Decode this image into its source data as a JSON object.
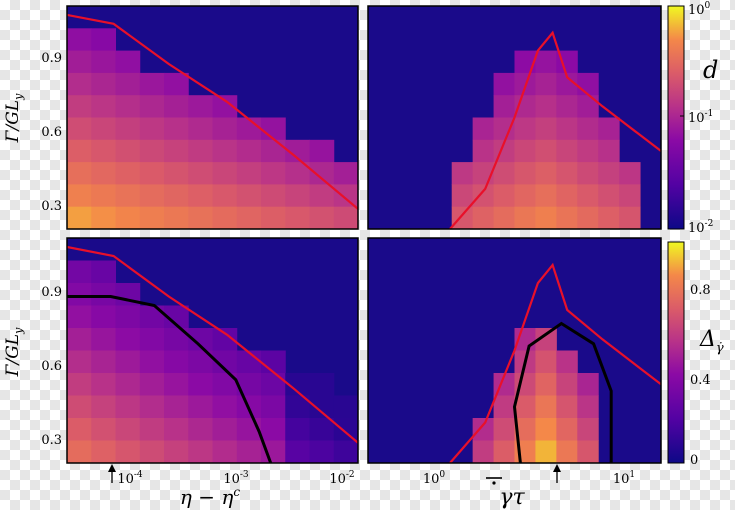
{
  "chart_data": [
    {
      "panel": "top-left",
      "type": "heatmap",
      "ylabel": "Γ/GL_y",
      "xscale": "log",
      "yticks": [
        "0.3",
        "0.6",
        "0.9"
      ],
      "ylim": [
        0.2,
        1.1
      ],
      "colormap": "plasma",
      "color_quantity": "d",
      "red_curve": {
        "x": [
          0,
          0.15,
          0.35,
          0.55,
          0.75,
          1.0
        ],
        "y": [
          1.05,
          1.0,
          0.87,
          0.72,
          0.56,
          0.29
        ]
      }
    },
    {
      "panel": "top-right",
      "type": "heatmap",
      "xscale": "log",
      "colormap": "plasma",
      "red_curve_peak": {
        "x": 3.2,
        "y": 0.93
      }
    },
    {
      "panel": "bottom-left",
      "type": "heatmap",
      "ylabel": "Γ/GL_y",
      "xlabel": "η − η^c",
      "xscale": "log",
      "xticks": [
        "10^-4",
        "10^-3",
        "10^-2"
      ],
      "yticks": [
        "0.3",
        "0.6",
        "0.9"
      ],
      "arrow_marker_x": "8e-5"
    },
    {
      "panel": "bottom-right",
      "type": "heatmap",
      "xlabel": "\\bar{\\dot{γ}}τ",
      "xscale": "log",
      "xticks": [
        "10^0",
        "10^1"
      ],
      "arrow_marker_x": "3.2"
    }
  ],
  "colorbars": {
    "top": {
      "label": "d",
      "ticks": [
        "10^0",
        "10^-1",
        "10^-2"
      ],
      "scale": "log"
    },
    "bottom": {
      "label": "Δ_γ̇",
      "ticks": [
        "0.8",
        "0.4",
        "0"
      ],
      "scale": "linear",
      "range": [
        0,
        1
      ]
    }
  },
  "labels": {
    "ylabel_top": "Γ/GL",
    "ylabel_bottom": "Γ/GL",
    "ylabel_sub": "y",
    "xlabel_left": "η − η",
    "xlabel_left_sup": "c",
    "xlabel_right": "γτ",
    "cbar_top_label": "d",
    "cbar_bottom_label": "Δ",
    "cbar_bottom_sub": "γ̇",
    "tick_1e-4": "10",
    "tick_1e-3": "10",
    "tick_1e-2": "10",
    "tick_1e0": "10",
    "tick_1e1": "10",
    "exp_m4": "-4",
    "exp_m3": "-3",
    "exp_m2": "-2",
    "exp_0": "0",
    "exp_1": "1",
    "cb_top_t0": "10",
    "cb_top_t1": "10",
    "cb_top_t2": "10",
    "cb_top_e0": "0",
    "cb_top_e1": "-1",
    "cb_top_e2": "-2",
    "cb_bot_t0": "0.8",
    "cb_bot_t1": "0.4",
    "cb_bot_t2": "0",
    "y03": "0.3",
    "y06": "0.6",
    "y09": "0.9"
  },
  "colors": {
    "background": "#1a0a8a",
    "red_curve": "#e8102a",
    "black_curve": "#000000"
  }
}
